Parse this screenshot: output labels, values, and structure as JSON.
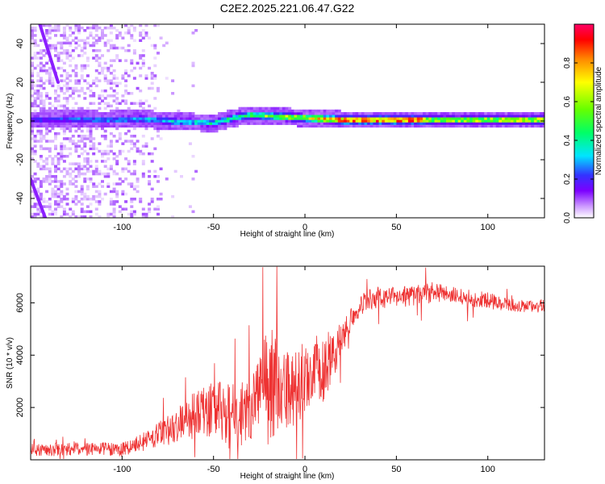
{
  "title": "C2E2.2025.221.06.47.G22",
  "chart_data": [
    {
      "type": "heatmap",
      "xlabel": "Height of straight line (km)",
      "ylabel": "Frequency (Hz)",
      "xlim": [
        -150,
        131
      ],
      "ylim": [
        -50,
        50
      ],
      "xticks": [
        -100,
        -50,
        0,
        50,
        100
      ],
      "yticks": [
        -40,
        -20,
        0,
        20,
        40
      ],
      "grid": false,
      "colorbar": {
        "label": "Normalized spectral amplitude",
        "range": [
          0,
          1
        ],
        "ticks": [
          "0.0",
          "0.2",
          "0.4",
          "0.6",
          "0.8"
        ],
        "colors": [
          "#ffffff",
          "#cc99ff",
          "#7b00ff",
          "#3333ff",
          "#00e5ff",
          "#00ff66",
          "#66ff00",
          "#ffff00",
          "#ff8800",
          "#ff0000",
          "#ff0066"
        ]
      },
      "centerline": [
        {
          "x": -150,
          "y": 0.0
        },
        {
          "x": -130,
          "y": 0.5
        },
        {
          "x": -110,
          "y": 0.0
        },
        {
          "x": -90,
          "y": 0.5
        },
        {
          "x": -70,
          "y": -1.0
        },
        {
          "x": -50,
          "y": -1.5
        },
        {
          "x": -40,
          "y": 1.0
        },
        {
          "x": -30,
          "y": 2.5
        },
        {
          "x": -20,
          "y": 2.0
        },
        {
          "x": -10,
          "y": 1.5
        },
        {
          "x": 0,
          "y": 1.0
        },
        {
          "x": 10,
          "y": 0.5
        },
        {
          "x": 20,
          "y": 0.0
        },
        {
          "x": 131,
          "y": 0.0
        }
      ],
      "peak_band": [
        {
          "x": -150,
          "amplitude": 0.3
        },
        {
          "x": -100,
          "amplitude": 0.4
        },
        {
          "x": -50,
          "amplitude": 0.5
        },
        {
          "x": -20,
          "amplitude": 0.65
        },
        {
          "x": 0,
          "amplitude": 0.75
        },
        {
          "x": 20,
          "amplitude": 0.95
        },
        {
          "x": 60,
          "amplitude": 0.95
        },
        {
          "x": 70,
          "amplitude": 0.7
        },
        {
          "x": 131,
          "amplitude": 0.75
        }
      ]
    },
    {
      "type": "line",
      "xlabel": "Height of straight line (km)",
      "ylabel": "SNR (10 * v/v)",
      "xlim": [
        -150,
        131
      ],
      "ylim": [
        0,
        7400
      ],
      "xticks": [
        -100,
        -50,
        0,
        50,
        100
      ],
      "yticks": [
        2000,
        4000,
        6000
      ],
      "grid": false,
      "color": "#ee3333",
      "series": [
        {
          "x": [
            -150,
            -140,
            -130,
            -120,
            -110,
            -100,
            -95,
            -90,
            -85,
            -80,
            -75,
            -70,
            -65,
            -60,
            -55,
            -50,
            -45,
            -40,
            -35,
            -30,
            -25,
            -20,
            -18,
            -15,
            -10,
            -5,
            0,
            5,
            10,
            15,
            20,
            25,
            30,
            35,
            40,
            45,
            50,
            55,
            60,
            65,
            70,
            75,
            80,
            85,
            90,
            95,
            100,
            105,
            110,
            115,
            120,
            125,
            131
          ],
          "values": [
            400,
            380,
            400,
            420,
            410,
            430,
            500,
            650,
            800,
            950,
            1150,
            1350,
            1550,
            1700,
            1850,
            1950,
            1850,
            1600,
            1750,
            2150,
            2600,
            2900,
            3200,
            2700,
            2500,
            2800,
            3100,
            3600,
            3400,
            3900,
            4600,
            5400,
            5900,
            6100,
            6200,
            6200,
            6200,
            6250,
            6300,
            6350,
            6400,
            6350,
            6300,
            6200,
            6150,
            6150,
            6100,
            6000,
            5950,
            5900,
            5850,
            5850,
            5900
          ],
          "noise_amplitude": [
            250,
            250,
            250,
            250,
            250,
            300,
            300,
            350,
            400,
            500,
            600,
            700,
            800,
            900,
            1000,
            1100,
            1200,
            1300,
            1300,
            1400,
            1600,
            2100,
            2400,
            1800,
            1600,
            1500,
            1400,
            1300,
            1200,
            900,
            700,
            500,
            400,
            400,
            400,
            400,
            400,
            400,
            400,
            400,
            400,
            350,
            350,
            350,
            350,
            300,
            300,
            300,
            250,
            250,
            250,
            250,
            250
          ]
        }
      ]
    }
  ]
}
